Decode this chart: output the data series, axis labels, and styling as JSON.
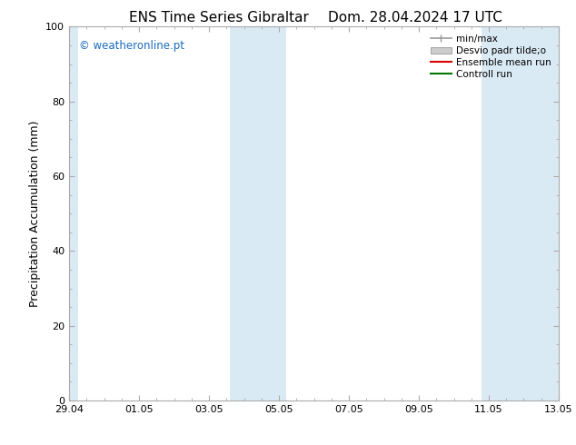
{
  "title_left": "ENS Time Series Gibraltar",
  "title_right": "Dom. 28.04.2024 17 UTC",
  "ylabel": "Precipitation Accumulation (mm)",
  "xlim_start": 0,
  "xlim_end": 14,
  "ylim": [
    0,
    100
  ],
  "yticks": [
    0,
    20,
    40,
    60,
    80,
    100
  ],
  "xtick_labels": [
    "29.04",
    "01.05",
    "03.05",
    "05.05",
    "07.05",
    "09.05",
    "11.05",
    "13.05"
  ],
  "xtick_positions": [
    0,
    2,
    4,
    6,
    8,
    10,
    12,
    14
  ],
  "shaded_bands": [
    {
      "x_start": 0.0,
      "x_end": 0.25,
      "color": "#daeaf5"
    },
    {
      "x_start": 4.6,
      "x_end": 6.2,
      "color": "#daeaf5"
    },
    {
      "x_start": 11.8,
      "x_end": 14.0,
      "color": "#daeaf5"
    }
  ],
  "watermark_text": "© weatheronline.pt",
  "watermark_color": "#1a6bbf",
  "legend_labels": [
    "min/max",
    "Desvio padr tilde;o",
    "Ensemble mean run",
    "Controll run"
  ],
  "legend_colors": [
    "#999999",
    "#cccccc",
    "#dd0000",
    "#007700"
  ],
  "background_color": "#ffffff",
  "spine_color": "#aaaaaa",
  "title_fontsize": 11,
  "tick_fontsize": 8,
  "ylabel_fontsize": 9
}
